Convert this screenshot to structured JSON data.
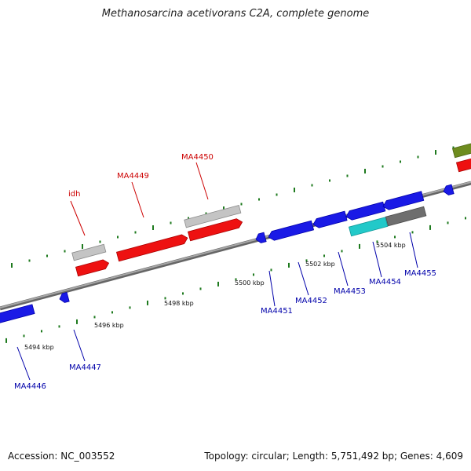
{
  "title": "Methanosarcina acetivorans C2A, complete genome",
  "footer": {
    "accession": "Accession: NC_003552",
    "summary": "Topology: circular; Length: 5,751,492 bp; Genes: 4,609"
  },
  "colors": {
    "backbone": "#8a8a8a",
    "forward_gene": "#ee1111",
    "reverse_gene": "#1a1ae6",
    "light_gray_gene": "#c4c4c4",
    "dark_gray_gene": "#6e6e6e",
    "cyan_gene": "#22c9c9",
    "olive_gene": "#6e8c1e",
    "tick": "#1e7a1e",
    "red_label": "#cc0000",
    "blue_label": "#0000aa"
  },
  "kbp_labels": [
    "5494 kbp",
    "5496 kbp",
    "5498 kbp",
    "5500 kbp",
    "5502 kbp",
    "5504 kbp"
  ],
  "gene_labels_top": [
    "idh",
    "MA4449",
    "MA4450"
  ],
  "gene_labels_bottom": [
    "MA4446",
    "MA4447",
    "MA4451",
    "MA4452",
    "MA4453",
    "MA4454",
    "MA4455"
  ]
}
